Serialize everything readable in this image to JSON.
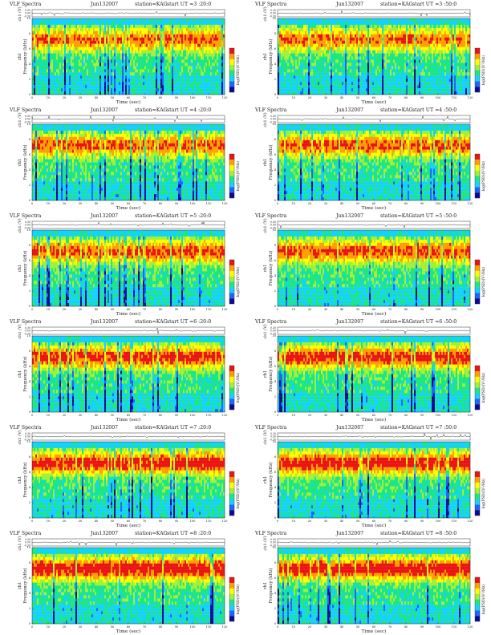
{
  "chart_data": [
    {
      "type": "heatmap",
      "title": "VLF Spectra",
      "date": "Jun132007",
      "station": "station=KAG",
      "start": "start  UT  =3 :20:0",
      "xlabel": "Time (sec)",
      "ylabel": "Frequency (kHz)",
      "channel_label": "ch1",
      "trace_label": "ch1 (V)",
      "trace_ticks": [
        "0.30",
        "0.00",
        "-0.30"
      ],
      "colorbar_label": "log(PSD)(V²/Hz)",
      "xlim": [
        0,
        120
      ],
      "ylim": [
        0,
        10
      ],
      "xticks": [
        0,
        10,
        20,
        30,
        40,
        50,
        60,
        70,
        80,
        90,
        100,
        110,
        120
      ],
      "yticks": [
        0,
        2,
        4,
        6,
        8,
        10
      ]
    },
    {
      "type": "heatmap",
      "title": "VLF Spectra",
      "date": "Jun132007",
      "station": "station=KAG",
      "start": "start  UT  =3 :50:0",
      "xlabel": "Time (sec)",
      "ylabel": "Frequency (kHz)",
      "channel_label": "ch1",
      "trace_label": "ch1 (V)",
      "trace_ticks": [
        "0.30",
        "0.00",
        "-0.30"
      ],
      "colorbar_label": "log(PSD)(V²/Hz)",
      "xlim": [
        0,
        120
      ],
      "ylim": [
        0,
        10
      ],
      "xticks": [
        0,
        10,
        20,
        30,
        40,
        50,
        60,
        70,
        80,
        90,
        100,
        110,
        120
      ],
      "yticks": [
        0,
        2,
        4,
        6,
        8,
        10
      ]
    },
    {
      "type": "heatmap",
      "title": "VLF Spectra",
      "date": "Jun132007",
      "station": "station=KAG",
      "start": "start  UT  =4 :20:0",
      "xlabel": "Time (sec)",
      "ylabel": "Frequency (kHz)",
      "channel_label": "ch1",
      "trace_label": "ch1 (V)",
      "trace_ticks": [
        "0.30",
        "0.00",
        "-0.30"
      ],
      "colorbar_label": "log(PSD)(V²/Hz)",
      "xlim": [
        0,
        120
      ],
      "ylim": [
        0,
        10
      ],
      "xticks": [
        0,
        10,
        20,
        30,
        40,
        50,
        60,
        70,
        80,
        90,
        100,
        110,
        120
      ],
      "yticks": [
        0,
        2,
        4,
        6,
        8,
        10
      ]
    },
    {
      "type": "heatmap",
      "title": "VLF Spectra",
      "date": "Jun132007",
      "station": "station=KAG",
      "start": "start  UT  =4 :50:0",
      "xlabel": "Time (sec)",
      "ylabel": "Frequency (kHz)",
      "channel_label": "ch1",
      "trace_label": "ch1 (V)",
      "trace_ticks": [
        "0.30",
        "0.00",
        "-0.30"
      ],
      "colorbar_label": "log(PSD)(V²/Hz)",
      "xlim": [
        0,
        120
      ],
      "ylim": [
        0,
        10
      ],
      "xticks": [
        0,
        10,
        20,
        30,
        40,
        50,
        60,
        70,
        80,
        90,
        100,
        110,
        120
      ],
      "yticks": [
        0,
        2,
        4,
        6,
        8,
        10
      ]
    },
    {
      "type": "heatmap",
      "title": "VLF Spectra",
      "date": "Jun132007",
      "station": "station=KAG",
      "start": "start  UT  =5 :20:0",
      "xlabel": "Time (sec)",
      "ylabel": "Frequency (kHz)",
      "channel_label": "ch1",
      "trace_label": "ch1 (V)",
      "trace_ticks": [
        "0.30",
        "0.00",
        "-0.30"
      ],
      "colorbar_label": "log(PSD)(V²/Hz)",
      "xlim": [
        0,
        120
      ],
      "ylim": [
        0,
        10
      ],
      "xticks": [
        0,
        10,
        20,
        30,
        40,
        50,
        60,
        70,
        80,
        90,
        100,
        110,
        120
      ],
      "yticks": [
        0,
        2,
        4,
        6,
        8,
        10
      ]
    },
    {
      "type": "heatmap",
      "title": "VLF Spectra",
      "date": "Jun132007",
      "station": "station=KAG",
      "start": "start  UT  =5 :50:0",
      "xlabel": "Time (sec)",
      "ylabel": "Frequency (kHz)",
      "channel_label": "ch1",
      "trace_label": "ch1 (V)",
      "trace_ticks": [
        "0.30",
        "0.00",
        "-0.30"
      ],
      "colorbar_label": "log(PSD)(V²/Hz)",
      "xlim": [
        0,
        120
      ],
      "ylim": [
        0,
        10
      ],
      "xticks": [
        0,
        10,
        20,
        30,
        40,
        50,
        60,
        70,
        80,
        90,
        100,
        110,
        120
      ],
      "yticks": [
        0,
        2,
        4,
        6,
        8,
        10
      ]
    },
    {
      "type": "heatmap",
      "title": "VLF Spectra",
      "date": "Jun132007",
      "station": "station=KAG",
      "start": "start  UT  =6 :20:0",
      "xlabel": "Time (sec)",
      "ylabel": "Frequency (kHz)",
      "channel_label": "ch1",
      "trace_label": "ch1 (V)",
      "trace_ticks": [
        "0.30",
        "0.00",
        "-0.30"
      ],
      "colorbar_label": "log(PSD)(V²/Hz)",
      "xlim": [
        0,
        120
      ],
      "ylim": [
        0,
        10
      ],
      "xticks": [
        0,
        10,
        20,
        30,
        40,
        50,
        60,
        70,
        80,
        90,
        100,
        110,
        120
      ],
      "yticks": [
        0,
        2,
        4,
        6,
        8,
        10
      ]
    },
    {
      "type": "heatmap",
      "title": "VLF Spectra",
      "date": "Jun132007",
      "station": "station=KAG",
      "start": "start  UT  =6 :50:0",
      "xlabel": "Time (sec)",
      "ylabel": "Frequency (kHz)",
      "channel_label": "ch1",
      "trace_label": "ch1 (V)",
      "trace_ticks": [
        "0.30",
        "0.00",
        "-0.30"
      ],
      "colorbar_label": "log(PSD)(V²/Hz)",
      "xlim": [
        0,
        120
      ],
      "ylim": [
        0,
        10
      ],
      "xticks": [
        0,
        10,
        20,
        30,
        40,
        50,
        60,
        70,
        80,
        90,
        100,
        110,
        120
      ],
      "yticks": [
        0,
        2,
        4,
        6,
        8,
        10
      ]
    },
    {
      "type": "heatmap",
      "title": "VLF Spectra",
      "date": "Jun132007",
      "station": "station=KAG",
      "start": "start  UT  =7 :20:0",
      "xlabel": "Time (sec)",
      "ylabel": "Frequency (kHz)",
      "channel_label": "ch1",
      "trace_label": "ch1 (V)",
      "trace_ticks": [
        "0.30",
        "0.00",
        "-0.30"
      ],
      "colorbar_label": "log(PSD)(V²/Hz)",
      "xlim": [
        0,
        120
      ],
      "ylim": [
        0,
        10
      ],
      "xticks": [
        0,
        10,
        20,
        30,
        40,
        50,
        60,
        70,
        80,
        90,
        100,
        110,
        120
      ],
      "yticks": [
        0,
        2,
        4,
        6,
        8,
        10
      ]
    },
    {
      "type": "heatmap",
      "title": "VLF Spectra",
      "date": "Jun132007",
      "station": "station=KAG",
      "start": "start  UT  =7 :50:0",
      "xlabel": "Time (sec)",
      "ylabel": "Frequency (kHz)",
      "channel_label": "ch1",
      "trace_label": "ch1 (V)",
      "trace_ticks": [
        "0.30",
        "0.00",
        "-0.30"
      ],
      "colorbar_label": "log(PSD)(V²/Hz)",
      "xlim": [
        0,
        120
      ],
      "ylim": [
        0,
        10
      ],
      "xticks": [
        0,
        10,
        20,
        30,
        40,
        50,
        60,
        70,
        80,
        90,
        100,
        110,
        120
      ],
      "yticks": [
        0,
        2,
        4,
        6,
        8,
        10
      ]
    },
    {
      "type": "heatmap",
      "title": "VLF Spectra",
      "date": "Jun132007",
      "station": "station=KAG",
      "start": "start  UT  =8 :20:0",
      "xlabel": "Time (sec)",
      "ylabel": "Frequency (kHz)",
      "channel_label": "ch1",
      "trace_label": "ch1 (V)",
      "trace_ticks": [
        "0.30",
        "0.00",
        "-0.30"
      ],
      "colorbar_label": "log(PSD)(V²/Hz)",
      "xlim": [
        0,
        120
      ],
      "ylim": [
        0,
        10
      ],
      "xticks": [
        0,
        10,
        20,
        30,
        40,
        50,
        60,
        70,
        80,
        90,
        100,
        110,
        120
      ],
      "yticks": [
        0,
        2,
        4,
        6,
        8,
        10
      ]
    },
    {
      "type": "heatmap",
      "title": "VLF Spectra",
      "date": "Jun132007",
      "station": "station=KAG",
      "start": "start  UT  =8 :50:0",
      "xlabel": "Time (sec)",
      "ylabel": "Frequency (kHz)",
      "channel_label": "ch1",
      "trace_label": "ch1 (V)",
      "trace_ticks": [
        "0.30",
        "0.00",
        "-0.30"
      ],
      "colorbar_label": "log(PSD)(V²/Hz)",
      "xlim": [
        0,
        120
      ],
      "ylim": [
        0,
        10
      ],
      "xticks": [
        0,
        10,
        20,
        30,
        40,
        50,
        60,
        70,
        80,
        90,
        100,
        110,
        120
      ],
      "yticks": [
        0,
        2,
        4,
        6,
        8,
        10
      ]
    }
  ],
  "colors": {
    "colormap": [
      "#0a0a96",
      "#1e64ff",
      "#14d2ff",
      "#1ee682",
      "#a0f03c",
      "#ffff00",
      "#ffa000",
      "#eb1414"
    ]
  }
}
